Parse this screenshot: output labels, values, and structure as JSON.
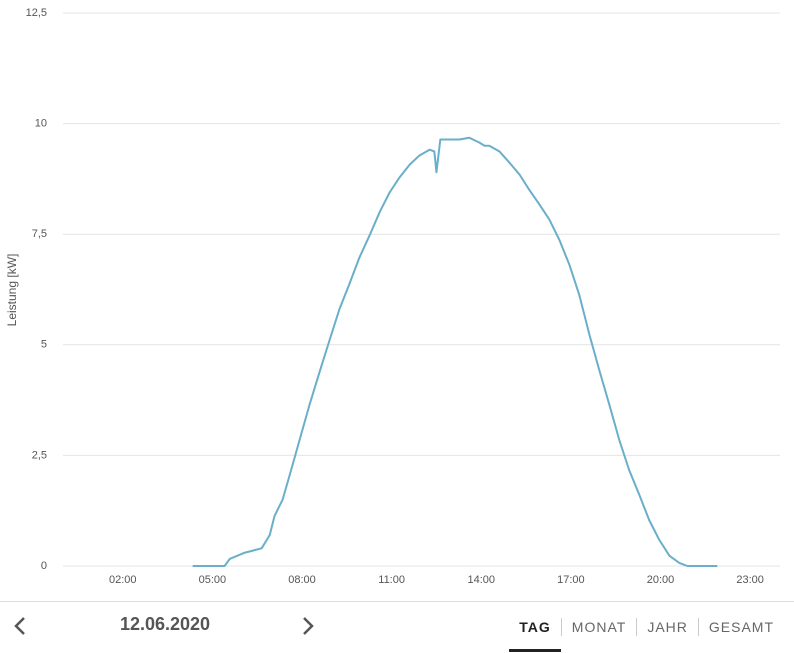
{
  "chart_data": {
    "type": "line",
    "y_label": "Leistung [kW]",
    "color": "#6aafc9",
    "grid": true,
    "xlim": [
      0,
      24
    ],
    "xticks": [
      {
        "value": 2,
        "label": "02:00"
      },
      {
        "value": 5,
        "label": "05:00"
      },
      {
        "value": 8,
        "label": "08:00"
      },
      {
        "value": 11,
        "label": "11:00"
      },
      {
        "value": 14,
        "label": "14:00"
      },
      {
        "value": 17,
        "label": "17:00"
      },
      {
        "value": 20,
        "label": "20:00"
      },
      {
        "value": 23,
        "label": "23:00"
      }
    ],
    "ylim": [
      0,
      12.5
    ],
    "yticks": [
      0,
      {
        "value": 2.5,
        "label": "2,5"
      },
      5,
      {
        "value": 7.5,
        "label": "7,5"
      },
      10,
      {
        "value": 12.5,
        "label": "12,5"
      }
    ],
    "x": [
      4.34,
      5.41,
      5.58,
      6.08,
      6.65,
      6.92,
      7.08,
      7.35,
      7.59,
      7.92,
      8.25,
      8.59,
      8.92,
      9.25,
      9.59,
      9.92,
      10.26,
      10.6,
      10.93,
      11.26,
      11.6,
      11.93,
      12.27,
      12.43,
      12.5,
      12.63,
      12.93,
      13.27,
      13.6,
      13.94,
      14.11,
      14.27,
      14.61,
      14.94,
      15.28,
      15.61,
      15.95,
      16.28,
      16.61,
      16.95,
      17.28,
      17.62,
      17.95,
      18.29,
      18.62,
      18.95,
      19.29,
      19.62,
      19.96,
      20.3,
      20.63,
      20.9,
      21.9
    ],
    "values": [
      0,
      0,
      0.16,
      0.3,
      0.4,
      0.7,
      1.13,
      1.5,
      2.06,
      2.85,
      3.64,
      4.39,
      5.1,
      5.8,
      6.38,
      6.97,
      7.47,
      8.0,
      8.44,
      8.78,
      9.07,
      9.28,
      9.41,
      9.37,
      8.9,
      9.64,
      9.64,
      9.64,
      9.68,
      9.57,
      9.5,
      9.5,
      9.37,
      9.12,
      8.85,
      8.5,
      8.17,
      7.83,
      7.38,
      6.81,
      6.13,
      5.23,
      4.43,
      3.64,
      2.85,
      2.17,
      1.61,
      1.04,
      0.59,
      0.23,
      0.07,
      0,
      0
    ]
  },
  "navigation": {
    "date": "12.06.2020",
    "tabs": [
      "TAG",
      "MONAT",
      "JAHR",
      "GESAMT"
    ],
    "active_tab": 0
  }
}
